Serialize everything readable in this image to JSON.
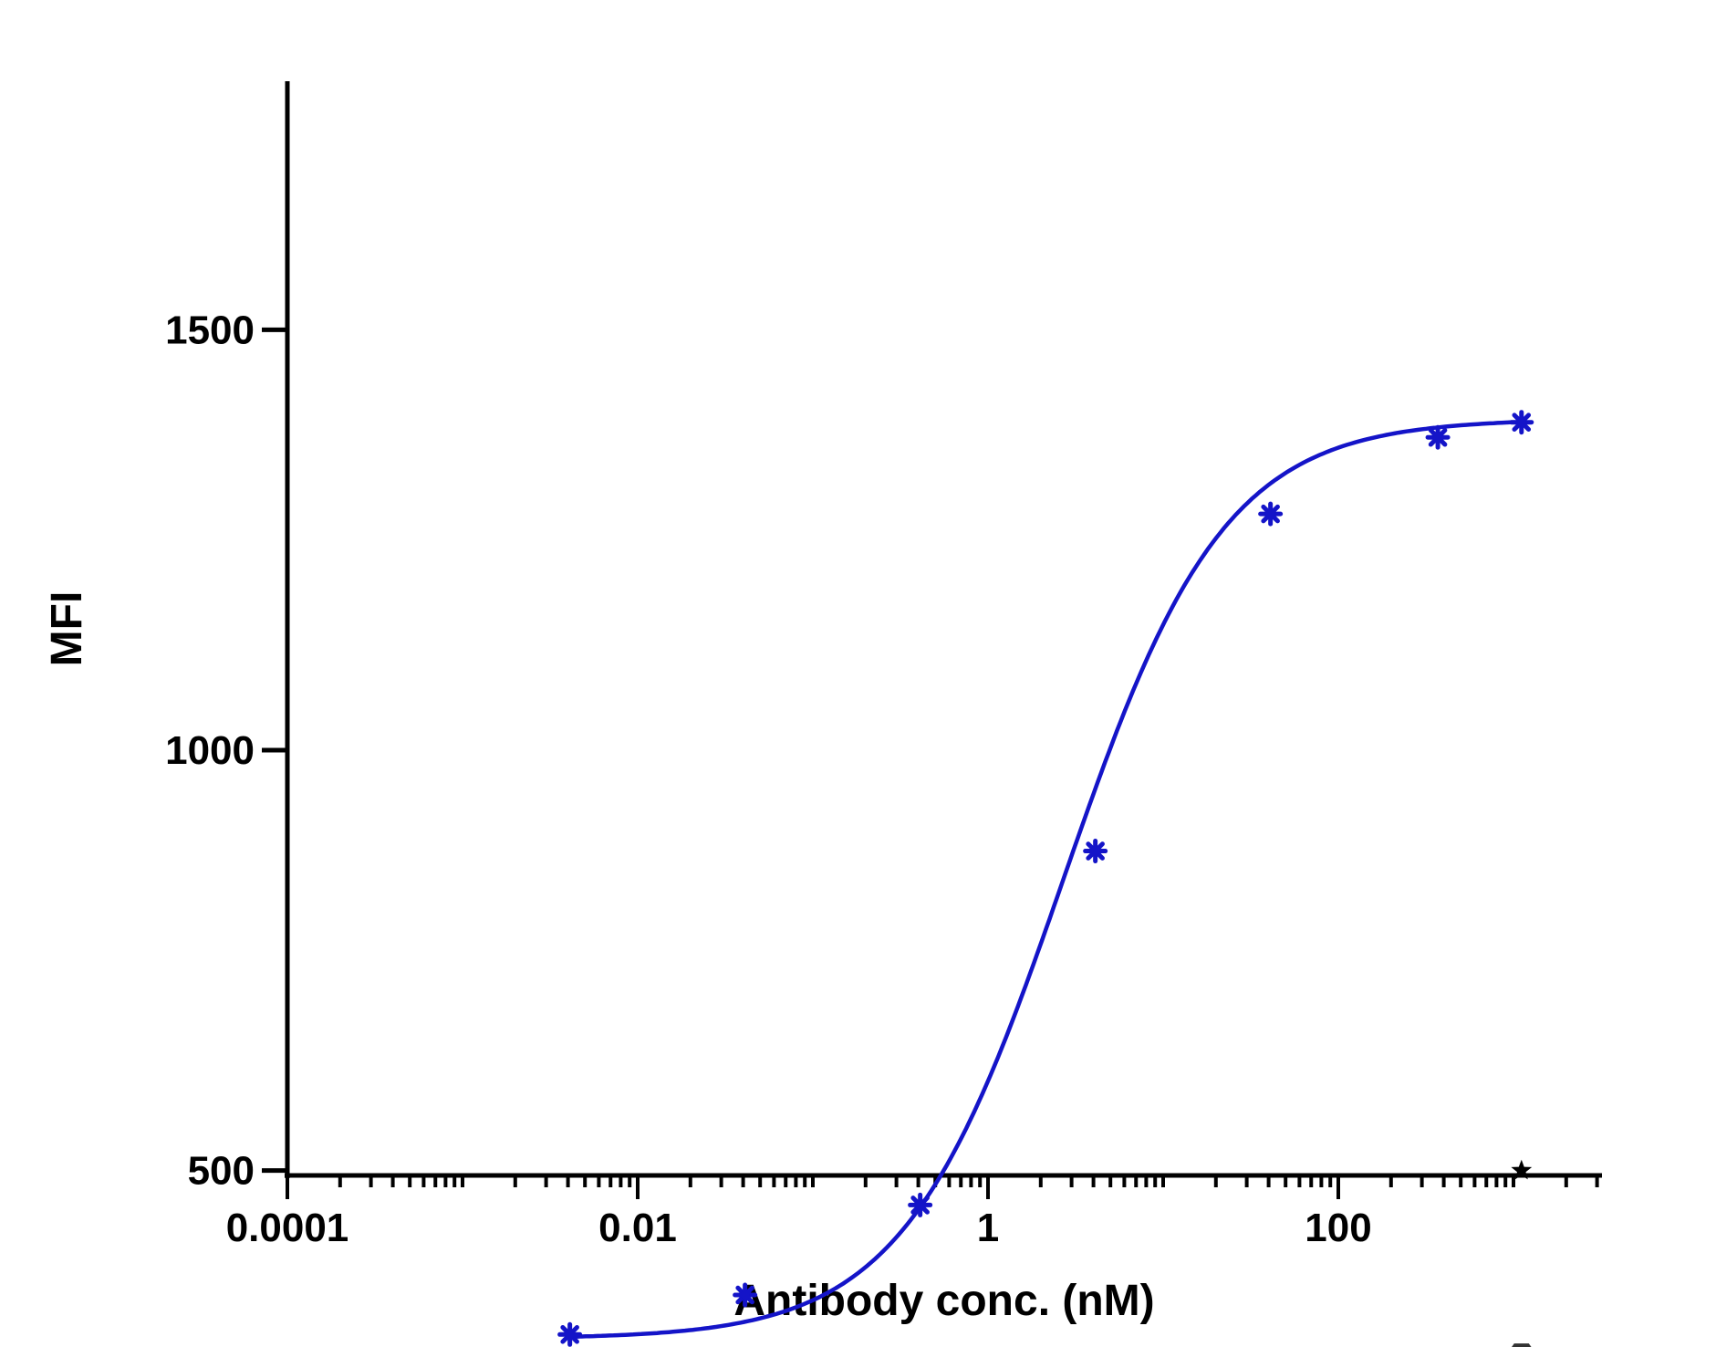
{
  "chart_data": {
    "type": "scatter",
    "title": "",
    "xlabel": "Antibody conc. (nM)",
    "ylabel": "MFI",
    "x_scale": "log",
    "xlim": [
      0.0001,
      3000
    ],
    "ylim": [
      200,
      1500
    ],
    "x_ticks": [
      {
        "value": 0.0001,
        "label": "0.0001"
      },
      {
        "value": 0.01,
        "label": "0.01"
      },
      {
        "value": 1,
        "label": "1"
      },
      {
        "value": 100,
        "label": "100"
      }
    ],
    "y_ticks": [
      {
        "value": 500,
        "label": "500"
      },
      {
        "value": 1000,
        "label": "1000"
      },
      {
        "value": 1500,
        "label": "1500"
      }
    ],
    "grid": false,
    "series": [
      {
        "x": [
          0.0041,
          0.041,
          0.41,
          4.1,
          41,
          370,
          1111
        ],
        "y": [
          305,
          352,
          459,
          880,
          1281,
          1372,
          1390
        ],
        "color": "#1414c8",
        "marker": "asterisk",
        "fit": "four-parameter logistic"
      }
    ],
    "fit_curve": {
      "bottom": 300,
      "top": 1394,
      "ec50": 2.7,
      "hill": 0.95,
      "color": "#1414c8"
    },
    "annotations": [
      {
        "symbol": "star",
        "x": 1111,
        "y": 500,
        "color": "#000000"
      },
      {
        "symbol": "hexagon",
        "x": 1111,
        "y": 282,
        "color": "#333333"
      }
    ]
  }
}
